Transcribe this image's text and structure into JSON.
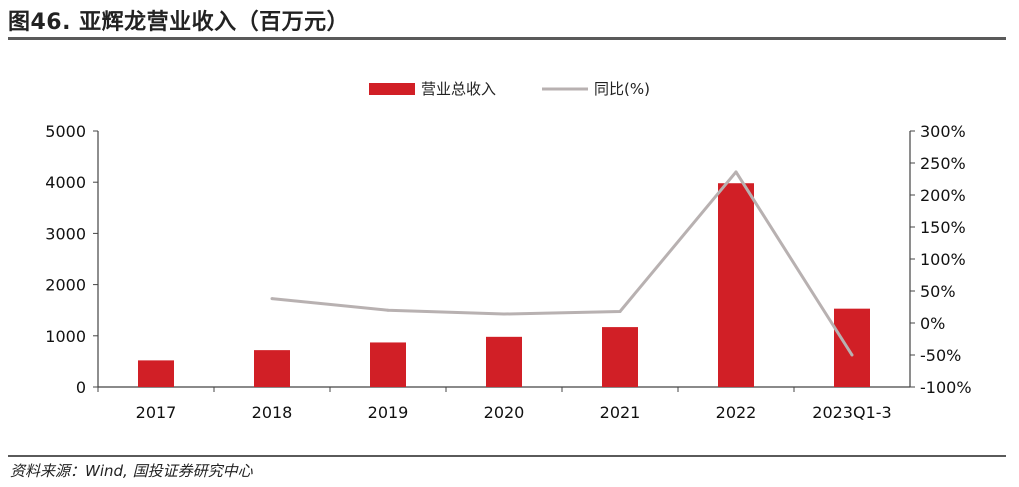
{
  "header": {
    "title": "图46. 亚辉龙营业收入（百万元）"
  },
  "footer": {
    "source": "资料来源：Wind, 国投证券研究中心"
  },
  "chart_data": {
    "type": "bar",
    "categories": [
      "2017",
      "2018",
      "2019",
      "2020",
      "2021",
      "2022",
      "2023Q1-3"
    ],
    "series": [
      {
        "name": "营业总收入",
        "type": "bar",
        "axis": "left",
        "color": "#d11f26",
        "values": [
          520,
          720,
          870,
          980,
          1170,
          3980,
          1530
        ]
      },
      {
        "name": "同比(%)",
        "type": "line",
        "axis": "right",
        "color": "#b8b1b1",
        "values": [
          null,
          38,
          20,
          14,
          18,
          236,
          -50
        ]
      }
    ],
    "y_left": {
      "min": 0,
      "max": 5000,
      "ticks": [
        "0",
        "1000",
        "2000",
        "3000",
        "4000",
        "5000"
      ]
    },
    "y_right": {
      "min": -100,
      "max": 300,
      "ticks": [
        "-100%",
        "-50%",
        "0%",
        "50%",
        "100%",
        "150%",
        "200%",
        "250%",
        "300%"
      ]
    },
    "legend_position": "top-center",
    "grid": false
  }
}
